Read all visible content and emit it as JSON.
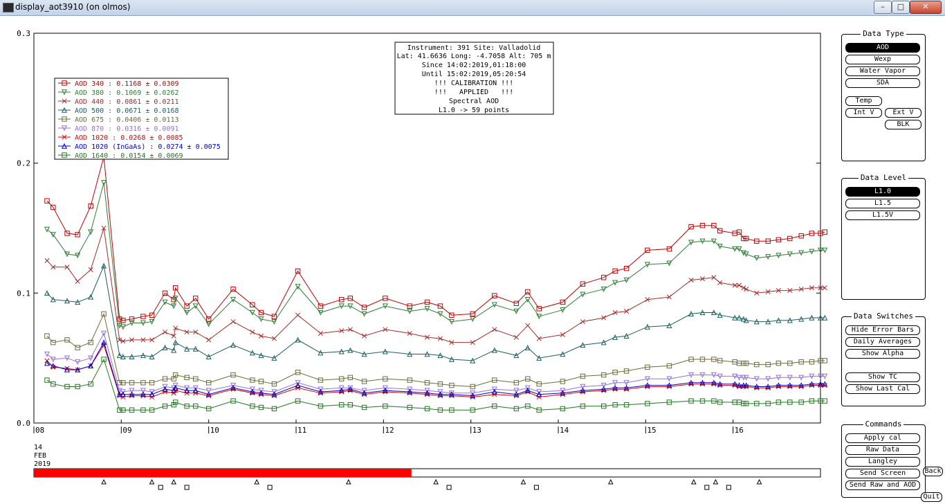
{
  "window": {
    "title": "display_aot3910 (on olmos)"
  },
  "info_box": [
    "Instrument: 391 Site: Valladolid",
    "Lat: 41.6636 Long: -4.7058 Alt: 705 m",
    "Since 14:02:2019,01:18:00",
    "Until 15:02:2019,05:20:54",
    "!!! CALIBRATION !!!",
    "!!!   APPLIED   !!!",
    "Spectral AOD",
    "L1.0 -> 59 points"
  ],
  "legend": [
    {
      "label": "AOD 340   : 0.1168 ± 0.0309",
      "color": "#c00000",
      "marker": "square"
    },
    {
      "label": "AOD 380   : 0.1069 ± 0.0262",
      "color": "#2e7d32",
      "marker": "tri-down"
    },
    {
      "label": "AOD 440   : 0.0861 ± 0.0211",
      "color": "#a52a2a",
      "marker": "x"
    },
    {
      "label": "AOD 500   : 0.0671 ± 0.0168",
      "color": "#1a5c5c",
      "marker": "tri-up"
    },
    {
      "label": "AOD 675   : 0.0406 ± 0.0113",
      "color": "#6b6b3a",
      "marker": "square"
    },
    {
      "label": "AOD 870   : 0.0316 ± 0.0091",
      "color": "#9370db",
      "marker": "tri-down"
    },
    {
      "label": "AOD 1020  : 0.0268 ± 0.0085",
      "color": "#e00000",
      "marker": "x"
    },
    {
      "label": "AOD 1020 (InGaAs)  : 0.0274 ± 0.0075",
      "color": "#0000cc",
      "marker": "tri-up"
    },
    {
      "label": "AOD 1640  : 0.0154 ± 0.0069",
      "color": "#1b7a1b",
      "marker": "square"
    }
  ],
  "date_label": [
    "14",
    "FEB",
    "2019"
  ],
  "progress": {
    "fraction": 0.48,
    "color": "#ff0000"
  },
  "timeline_markers": {
    "triangles_hours": [
      8.8,
      9.35,
      9.6,
      10.55,
      11.6,
      12.6,
      13.6,
      14.6,
      15.55,
      15.8,
      16.3
    ],
    "squares_hours": [
      9.45,
      9.75,
      10.7,
      12.75,
      13.75,
      15.7,
      15.95
    ]
  },
  "chart_data": {
    "type": "line",
    "xlabel": "",
    "ylabel": "",
    "ylim": [
      0,
      0.3
    ],
    "xlim": [
      8,
      17
    ],
    "yticks": [
      "0.0",
      "0.1",
      "0.2",
      "0.3"
    ],
    "xticks": [
      {
        "x": 8,
        "label": "08"
      },
      {
        "x": 9,
        "label": "09"
      },
      {
        "x": 10,
        "label": "10"
      },
      {
        "x": 11,
        "label": "11"
      },
      {
        "x": 12,
        "label": "12"
      },
      {
        "x": 13,
        "label": "13"
      },
      {
        "x": 14,
        "label": "14"
      },
      {
        "x": 15,
        "label": "15"
      },
      {
        "x": 16,
        "label": "16"
      }
    ],
    "x": [
      8.15,
      8.22,
      8.38,
      8.5,
      8.65,
      8.8,
      8.98,
      9.02,
      9.12,
      9.25,
      9.35,
      9.5,
      9.6,
      9.62,
      9.75,
      9.85,
      10.0,
      10.28,
      10.5,
      10.6,
      10.75,
      11.02,
      11.28,
      11.52,
      11.62,
      11.78,
      12.02,
      12.3,
      12.5,
      12.65,
      12.78,
      13.02,
      13.27,
      13.52,
      13.65,
      13.78,
      14.05,
      14.28,
      14.52,
      14.65,
      14.78,
      15.02,
      15.27,
      15.52,
      15.65,
      15.78,
      15.85,
      16.02,
      16.07,
      16.12,
      16.15,
      16.27,
      16.4,
      16.52,
      16.65,
      16.78,
      16.9,
      17.0,
      17.05
    ],
    "series": [
      {
        "name": "AOD 340",
        "values": [
          0.171,
          0.166,
          0.146,
          0.145,
          0.167,
          0.205,
          0.08,
          0.079,
          0.08,
          0.082,
          0.083,
          0.1,
          0.095,
          0.104,
          0.09,
          0.096,
          0.08,
          0.103,
          0.091,
          0.085,
          0.082,
          0.117,
          0.09,
          0.095,
          0.096,
          0.089,
          0.096,
          0.09,
          0.093,
          0.09,
          0.083,
          0.084,
          0.098,
          0.092,
          0.101,
          0.088,
          0.093,
          0.107,
          0.112,
          0.117,
          0.119,
          0.133,
          0.134,
          0.151,
          0.152,
          0.152,
          0.148,
          0.146,
          0.147,
          0.142,
          0.142,
          0.14,
          0.14,
          0.141,
          0.142,
          0.144,
          0.146,
          0.146,
          0.147
        ]
      },
      {
        "name": "AOD 380",
        "values": [
          0.149,
          0.145,
          0.13,
          0.129,
          0.147,
          0.185,
          0.075,
          0.074,
          0.077,
          0.077,
          0.078,
          0.093,
          0.09,
          0.096,
          0.085,
          0.09,
          0.076,
          0.095,
          0.085,
          0.08,
          0.078,
          0.105,
          0.085,
          0.09,
          0.09,
          0.084,
          0.09,
          0.086,
          0.088,
          0.084,
          0.078,
          0.08,
          0.091,
          0.086,
          0.095,
          0.082,
          0.087,
          0.099,
          0.103,
          0.108,
          0.11,
          0.122,
          0.123,
          0.139,
          0.14,
          0.14,
          0.136,
          0.134,
          0.134,
          0.131,
          0.13,
          0.127,
          0.128,
          0.129,
          0.13,
          0.131,
          0.132,
          0.133,
          0.133
        ]
      },
      {
        "name": "AOD 440",
        "values": [
          0.125,
          0.12,
          0.12,
          0.109,
          0.118,
          0.15,
          0.064,
          0.063,
          0.064,
          0.064,
          0.064,
          0.07,
          0.067,
          0.073,
          0.07,
          0.07,
          0.064,
          0.078,
          0.07,
          0.067,
          0.065,
          0.083,
          0.069,
          0.071,
          0.072,
          0.067,
          0.072,
          0.069,
          0.066,
          0.065,
          0.062,
          0.062,
          0.072,
          0.066,
          0.075,
          0.065,
          0.068,
          0.078,
          0.081,
          0.085,
          0.086,
          0.095,
          0.097,
          0.11,
          0.111,
          0.112,
          0.108,
          0.106,
          0.106,
          0.104,
          0.103,
          0.1,
          0.101,
          0.102,
          0.102,
          0.103,
          0.104,
          0.104,
          0.104
        ]
      },
      {
        "name": "AOD 500",
        "values": [
          0.1,
          0.095,
          0.094,
          0.093,
          0.097,
          0.121,
          0.052,
          0.051,
          0.051,
          0.052,
          0.051,
          0.058,
          0.056,
          0.062,
          0.057,
          0.057,
          0.051,
          0.06,
          0.054,
          0.052,
          0.05,
          0.064,
          0.054,
          0.055,
          0.056,
          0.053,
          0.055,
          0.053,
          0.053,
          0.052,
          0.049,
          0.048,
          0.056,
          0.052,
          0.058,
          0.05,
          0.053,
          0.06,
          0.062,
          0.066,
          0.067,
          0.074,
          0.075,
          0.084,
          0.085,
          0.085,
          0.083,
          0.081,
          0.081,
          0.08,
          0.079,
          0.078,
          0.078,
          0.079,
          0.079,
          0.08,
          0.081,
          0.081,
          0.081
        ]
      },
      {
        "name": "AOD 675",
        "values": [
          0.067,
          0.062,
          0.064,
          0.058,
          0.062,
          0.084,
          0.031,
          0.031,
          0.031,
          0.031,
          0.031,
          0.034,
          0.034,
          0.037,
          0.035,
          0.034,
          0.031,
          0.037,
          0.033,
          0.032,
          0.03,
          0.039,
          0.033,
          0.034,
          0.035,
          0.032,
          0.034,
          0.033,
          0.031,
          0.03,
          0.029,
          0.028,
          0.033,
          0.031,
          0.034,
          0.03,
          0.032,
          0.036,
          0.037,
          0.039,
          0.04,
          0.043,
          0.044,
          0.049,
          0.049,
          0.049,
          0.048,
          0.047,
          0.046,
          0.046,
          0.046,
          0.045,
          0.045,
          0.046,
          0.046,
          0.047,
          0.047,
          0.048,
          0.048
        ]
      },
      {
        "name": "AOD 870",
        "values": [
          0.053,
          0.049,
          0.05,
          0.047,
          0.05,
          0.069,
          0.025,
          0.024,
          0.025,
          0.025,
          0.024,
          0.028,
          0.027,
          0.029,
          0.027,
          0.027,
          0.025,
          0.029,
          0.026,
          0.025,
          0.024,
          0.031,
          0.026,
          0.027,
          0.027,
          0.025,
          0.027,
          0.026,
          0.025,
          0.024,
          0.023,
          0.023,
          0.026,
          0.025,
          0.027,
          0.024,
          0.025,
          0.028,
          0.029,
          0.031,
          0.031,
          0.034,
          0.034,
          0.037,
          0.037,
          0.037,
          0.036,
          0.036,
          0.035,
          0.035,
          0.035,
          0.034,
          0.034,
          0.035,
          0.035,
          0.035,
          0.036,
          0.036,
          0.036
        ]
      },
      {
        "name": "AOD 1020",
        "values": [
          0.048,
          0.043,
          0.042,
          0.041,
          0.044,
          0.06,
          0.021,
          0.02,
          0.021,
          0.021,
          0.02,
          0.024,
          0.023,
          0.025,
          0.023,
          0.023,
          0.021,
          0.026,
          0.023,
          0.022,
          0.021,
          0.027,
          0.023,
          0.024,
          0.025,
          0.022,
          0.024,
          0.023,
          0.022,
          0.021,
          0.021,
          0.02,
          0.022,
          0.021,
          0.024,
          0.02,
          0.022,
          0.024,
          0.025,
          0.026,
          0.026,
          0.028,
          0.028,
          0.03,
          0.03,
          0.03,
          0.029,
          0.029,
          0.028,
          0.028,
          0.028,
          0.027,
          0.027,
          0.028,
          0.028,
          0.028,
          0.029,
          0.029,
          0.029
        ]
      },
      {
        "name": "AOD 1020 (InGaAs)",
        "values": [
          0.046,
          0.044,
          0.041,
          0.041,
          0.044,
          0.062,
          0.022,
          0.022,
          0.022,
          0.022,
          0.022,
          0.026,
          0.025,
          0.027,
          0.025,
          0.025,
          0.022,
          0.027,
          0.024,
          0.023,
          0.022,
          0.029,
          0.024,
          0.025,
          0.026,
          0.023,
          0.025,
          0.024,
          0.023,
          0.022,
          0.022,
          0.021,
          0.024,
          0.022,
          0.025,
          0.022,
          0.023,
          0.025,
          0.026,
          0.027,
          0.027,
          0.029,
          0.029,
          0.031,
          0.031,
          0.031,
          0.03,
          0.03,
          0.029,
          0.029,
          0.029,
          0.028,
          0.028,
          0.029,
          0.029,
          0.029,
          0.03,
          0.03,
          0.03
        ]
      },
      {
        "name": "AOD 1640",
        "values": [
          0.033,
          0.03,
          0.028,
          0.028,
          0.03,
          0.049,
          0.01,
          0.01,
          0.01,
          0.01,
          0.01,
          0.013,
          0.014,
          0.016,
          0.013,
          0.013,
          0.011,
          0.017,
          0.013,
          0.012,
          0.011,
          0.017,
          0.013,
          0.014,
          0.014,
          0.012,
          0.013,
          0.012,
          0.011,
          0.01,
          0.01,
          0.01,
          0.013,
          0.011,
          0.013,
          0.01,
          0.011,
          0.013,
          0.013,
          0.014,
          0.014,
          0.015,
          0.016,
          0.017,
          0.017,
          0.017,
          0.016,
          0.016,
          0.016,
          0.015,
          0.015,
          0.015,
          0.015,
          0.016,
          0.016,
          0.016,
          0.017,
          0.017,
          0.017
        ]
      }
    ]
  },
  "panels": {
    "data_type": {
      "title": "Data Type",
      "buttons": [
        "AOD",
        "Wexp",
        "Water Vapor",
        "SDA",
        "Temp",
        "Int V",
        "Ext V",
        "BLK"
      ],
      "selected": "AOD"
    },
    "data_level": {
      "title": "Data Level",
      "buttons": [
        "L1.0",
        "L1.5",
        "L1.5V"
      ],
      "selected": "L1.0"
    },
    "data_switches": {
      "title": "Data Switches",
      "buttons": [
        "Hide Error Bars",
        "Daily Averages",
        "Show Alpha",
        "Show TC",
        "Show Last Cal"
      ]
    },
    "commands": {
      "title": "Commands",
      "buttons": [
        "Apply cal",
        "Raw Data",
        "Langley",
        "Send Screen",
        "Send Raw and AOD"
      ]
    },
    "back_label": "Back",
    "quit_label": "Quit"
  }
}
